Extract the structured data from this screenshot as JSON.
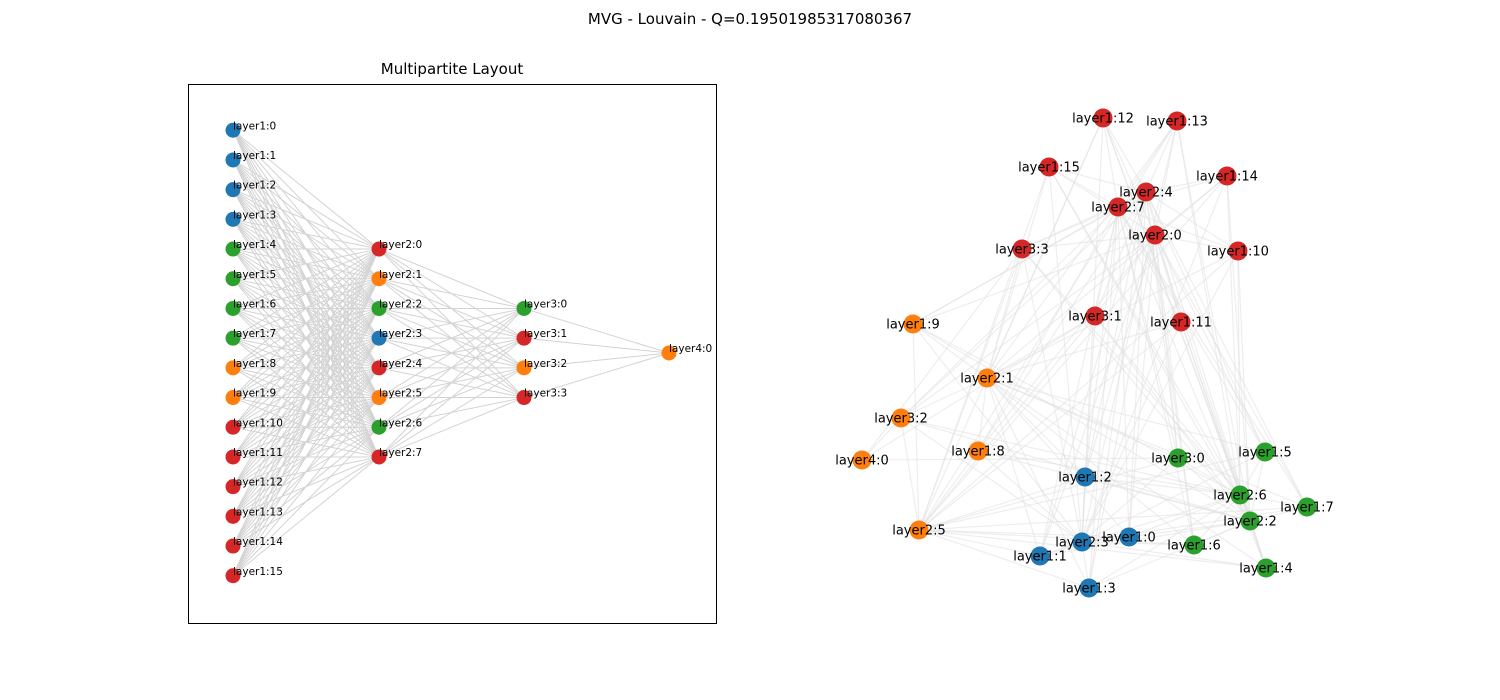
{
  "figure": {
    "suptitle": "MVG - Louvain - Q=0.19501985317080367",
    "left_title": "Multipartite Layout"
  },
  "colors": {
    "blue": "#1f77b4",
    "orange": "#ff7f0e",
    "green": "#2ca02c",
    "red": "#d62728",
    "edge_left": "#d3d3d3",
    "edge_right": "#e0e0e0"
  },
  "nodes": [
    {
      "id": "layer1:0",
      "layer": 1,
      "community": "blue"
    },
    {
      "id": "layer1:1",
      "layer": 1,
      "community": "blue"
    },
    {
      "id": "layer1:2",
      "layer": 1,
      "community": "blue"
    },
    {
      "id": "layer1:3",
      "layer": 1,
      "community": "blue"
    },
    {
      "id": "layer1:4",
      "layer": 1,
      "community": "green"
    },
    {
      "id": "layer1:5",
      "layer": 1,
      "community": "green"
    },
    {
      "id": "layer1:6",
      "layer": 1,
      "community": "green"
    },
    {
      "id": "layer1:7",
      "layer": 1,
      "community": "green"
    },
    {
      "id": "layer1:8",
      "layer": 1,
      "community": "orange"
    },
    {
      "id": "layer1:9",
      "layer": 1,
      "community": "orange"
    },
    {
      "id": "layer1:10",
      "layer": 1,
      "community": "red"
    },
    {
      "id": "layer1:11",
      "layer": 1,
      "community": "red"
    },
    {
      "id": "layer1:12",
      "layer": 1,
      "community": "red"
    },
    {
      "id": "layer1:13",
      "layer": 1,
      "community": "red"
    },
    {
      "id": "layer1:14",
      "layer": 1,
      "community": "red"
    },
    {
      "id": "layer1:15",
      "layer": 1,
      "community": "red"
    },
    {
      "id": "layer2:0",
      "layer": 2,
      "community": "red"
    },
    {
      "id": "layer2:1",
      "layer": 2,
      "community": "orange"
    },
    {
      "id": "layer2:2",
      "layer": 2,
      "community": "green"
    },
    {
      "id": "layer2:3",
      "layer": 2,
      "community": "blue"
    },
    {
      "id": "layer2:4",
      "layer": 2,
      "community": "red"
    },
    {
      "id": "layer2:5",
      "layer": 2,
      "community": "orange"
    },
    {
      "id": "layer2:6",
      "layer": 2,
      "community": "green"
    },
    {
      "id": "layer2:7",
      "layer": 2,
      "community": "red"
    },
    {
      "id": "layer3:0",
      "layer": 3,
      "community": "green"
    },
    {
      "id": "layer3:1",
      "layer": 3,
      "community": "red"
    },
    {
      "id": "layer3:2",
      "layer": 3,
      "community": "orange"
    },
    {
      "id": "layer3:3",
      "layer": 3,
      "community": "red"
    },
    {
      "id": "layer4:0",
      "layer": 4,
      "community": "orange"
    }
  ]
}
